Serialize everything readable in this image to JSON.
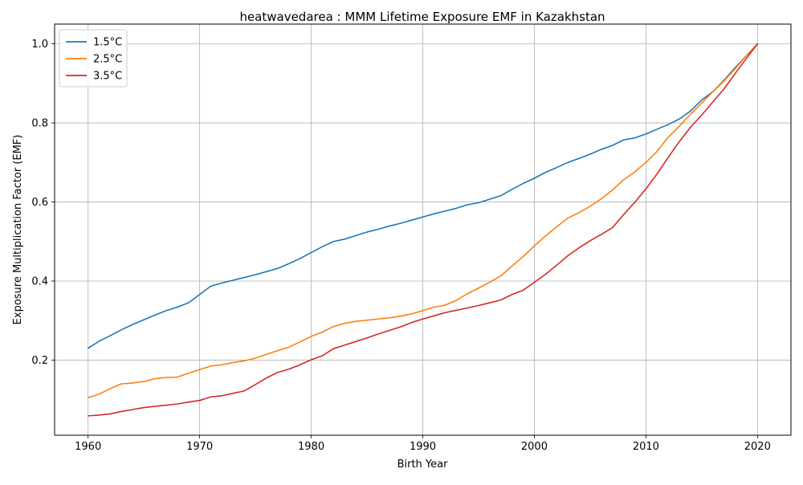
{
  "chart_data": {
    "type": "line",
    "title": "heatwavedarea : MMM Lifetime Exposure EMF in Kazakhstan",
    "xlabel": "Birth Year",
    "ylabel": "Exposure Multiplication Factor (EMF)",
    "xlim": [
      1957,
      2023
    ],
    "ylim": [
      0.01,
      1.05
    ],
    "xticks": [
      1960,
      1970,
      1980,
      1990,
      2000,
      2010,
      2020
    ],
    "yticks": [
      0.2,
      0.4,
      0.6,
      0.8,
      1.0
    ],
    "ytick_labels": [
      "0.2",
      "0.4",
      "0.6",
      "0.8",
      "1.0"
    ],
    "grid": true,
    "legend_position": "top-left",
    "x": [
      1960,
      1961,
      1962,
      1963,
      1964,
      1965,
      1966,
      1967,
      1968,
      1969,
      1970,
      1971,
      1972,
      1973,
      1974,
      1975,
      1976,
      1977,
      1978,
      1979,
      1980,
      1981,
      1982,
      1983,
      1984,
      1985,
      1986,
      1987,
      1988,
      1989,
      1990,
      1991,
      1992,
      1993,
      1994,
      1995,
      1996,
      1997,
      1998,
      1999,
      2000,
      2001,
      2002,
      2003,
      2004,
      2005,
      2006,
      2007,
      2008,
      2009,
      2010,
      2011,
      2012,
      2013,
      2014,
      2015,
      2016,
      2017,
      2018,
      2019,
      2020
    ],
    "series": [
      {
        "name": "1.5°C",
        "color": "#1f77b4",
        "values": [
          0.23,
          0.248,
          0.262,
          0.277,
          0.29,
          0.302,
          0.314,
          0.325,
          0.334,
          0.345,
          0.366,
          0.387,
          0.395,
          0.402,
          0.409,
          0.416,
          0.424,
          0.432,
          0.444,
          0.457,
          0.472,
          0.487,
          0.5,
          0.506,
          0.515,
          0.524,
          0.531,
          0.539,
          0.546,
          0.554,
          0.562,
          0.57,
          0.577,
          0.584,
          0.593,
          0.598,
          0.607,
          0.616,
          0.632,
          0.647,
          0.66,
          0.675,
          0.687,
          0.7,
          0.71,
          0.721,
          0.733,
          0.743,
          0.757,
          0.762,
          0.772,
          0.784,
          0.796,
          0.81,
          0.83,
          0.858,
          0.879,
          0.908,
          0.94,
          0.97,
          1.0
        ]
      },
      {
        "name": "2.5°C",
        "color": "#ff7f0e",
        "values": [
          0.105,
          0.114,
          0.128,
          0.14,
          0.142,
          0.146,
          0.153,
          0.156,
          0.157,
          0.167,
          0.176,
          0.185,
          0.188,
          0.194,
          0.198,
          0.205,
          0.215,
          0.224,
          0.233,
          0.246,
          0.26,
          0.271,
          0.285,
          0.293,
          0.298,
          0.301,
          0.304,
          0.307,
          0.311,
          0.317,
          0.325,
          0.334,
          0.339,
          0.351,
          0.368,
          0.382,
          0.397,
          0.413,
          0.438,
          0.462,
          0.489,
          0.514,
          0.537,
          0.559,
          0.573,
          0.589,
          0.608,
          0.63,
          0.656,
          0.676,
          0.7,
          0.728,
          0.764,
          0.792,
          0.822,
          0.85,
          0.879,
          0.906,
          0.937,
          0.97,
          1.0
        ]
      },
      {
        "name": "3.5°C",
        "color": "#d62728",
        "values": [
          0.059,
          0.061,
          0.064,
          0.07,
          0.075,
          0.08,
          0.083,
          0.086,
          0.089,
          0.094,
          0.098,
          0.107,
          0.11,
          0.116,
          0.122,
          0.138,
          0.155,
          0.169,
          0.177,
          0.188,
          0.201,
          0.211,
          0.229,
          0.238,
          0.247,
          0.256,
          0.266,
          0.275,
          0.284,
          0.295,
          0.304,
          0.312,
          0.32,
          0.326,
          0.332,
          0.338,
          0.345,
          0.352,
          0.366,
          0.377,
          0.397,
          0.417,
          0.44,
          0.464,
          0.484,
          0.502,
          0.518,
          0.535,
          0.568,
          0.599,
          0.633,
          0.671,
          0.713,
          0.753,
          0.789,
          0.82,
          0.853,
          0.886,
          0.925,
          0.963,
          1.0
        ]
      }
    ]
  }
}
